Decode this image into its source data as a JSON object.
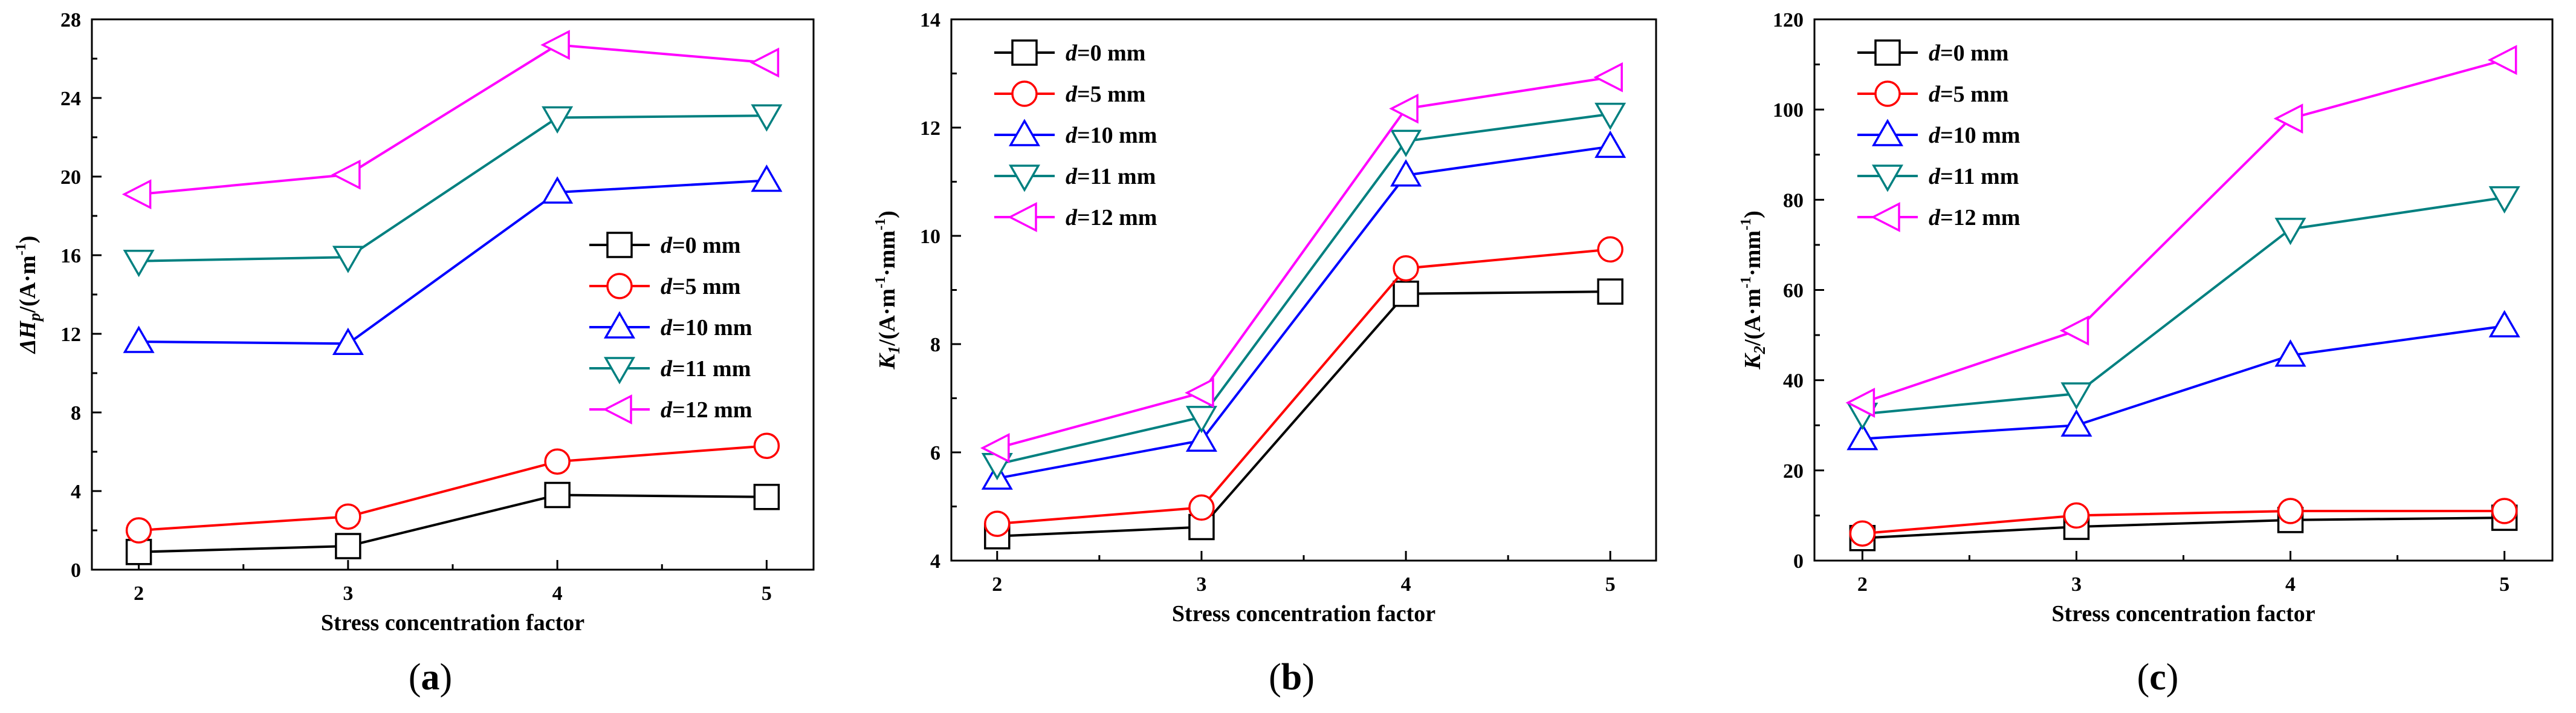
{
  "figure": {
    "panels": [
      "(a)",
      "(b)",
      "(c)"
    ]
  },
  "legend_entries": [
    {
      "prefix": "d",
      "suffix": "=0 mm",
      "color": "#000000",
      "marker": "square"
    },
    {
      "prefix": "d",
      "suffix": "=5 mm",
      "color": "#ff0000",
      "marker": "circle"
    },
    {
      "prefix": "d",
      "suffix": "=10 mm",
      "color": "#0000ff",
      "marker": "triangle-up"
    },
    {
      "prefix": "d",
      "suffix": "=11 mm",
      "color": "#008080",
      "marker": "triangle-down"
    },
    {
      "prefix": "d",
      "suffix": "=12 mm",
      "color": "#ff00ff",
      "marker": "triangle-left"
    }
  ],
  "chart_data": [
    {
      "type": "line",
      "panel": "(a)",
      "xlabel": "Stress concentration factor",
      "ylabel_main": "ΔH",
      "ylabel_sub": "p",
      "ylabel_unit": "/(A·m",
      "ylabel_exp": "-1",
      "ylabel_end": ")",
      "categories": [
        2,
        3,
        4,
        5
      ],
      "ylim": [
        0,
        28
      ],
      "yticks": [
        0,
        4,
        8,
        12,
        16,
        20,
        24,
        28
      ],
      "legend_position": "center-right",
      "series": [
        {
          "name": "d=0 mm",
          "values": [
            0.9,
            1.2,
            3.8,
            3.7
          ]
        },
        {
          "name": "d=5 mm",
          "values": [
            2.0,
            2.7,
            5.5,
            6.3
          ]
        },
        {
          "name": "d=10 mm",
          "values": [
            11.6,
            11.5,
            19.2,
            19.8
          ]
        },
        {
          "name": "d=11 mm",
          "values": [
            15.7,
            15.9,
            23.0,
            23.1
          ]
        },
        {
          "name": "d=12 mm",
          "values": [
            19.1,
            20.1,
            26.7,
            25.8
          ]
        }
      ]
    },
    {
      "type": "line",
      "panel": "(b)",
      "xlabel": "Stress concentration factor",
      "ylabel_main": "K",
      "ylabel_sub": "1",
      "ylabel_unit": "/(A·m",
      "ylabel_exp": "-1",
      "ylabel_mid": "·mm",
      "ylabel_exp2": "-1",
      "ylabel_end": ")",
      "categories": [
        2,
        3,
        4,
        5
      ],
      "ylim": [
        4,
        14
      ],
      "yticks": [
        4,
        6,
        8,
        10,
        12,
        14
      ],
      "legend_position": "top-left",
      "series": [
        {
          "name": "d=0 mm",
          "values": [
            4.45,
            4.62,
            8.93,
            8.97
          ]
        },
        {
          "name": "d=5 mm",
          "values": [
            4.68,
            4.98,
            9.4,
            9.75
          ]
        },
        {
          "name": "d=10 mm",
          "values": [
            5.52,
            6.22,
            11.12,
            11.65
          ]
        },
        {
          "name": "d=11 mm",
          "values": [
            5.78,
            6.65,
            11.75,
            12.25
          ]
        },
        {
          "name": "d=12 mm",
          "values": [
            6.08,
            7.1,
            12.35,
            12.93
          ]
        }
      ]
    },
    {
      "type": "line",
      "panel": "(c)",
      "xlabel": "Stress concentration factor",
      "ylabel_main": "K",
      "ylabel_sub": "2",
      "ylabel_unit": "/(A·m",
      "ylabel_exp": "-1",
      "ylabel_mid": "·mm",
      "ylabel_exp2": "-1",
      "ylabel_end": ")",
      "categories": [
        2,
        3,
        4,
        5
      ],
      "ylim": [
        0,
        120
      ],
      "yticks": [
        0,
        20,
        40,
        60,
        80,
        100,
        120
      ],
      "legend_position": "top-left",
      "series": [
        {
          "name": "d=0 mm",
          "values": [
            5,
            7.5,
            9,
            9.5
          ]
        },
        {
          "name": "d=5 mm",
          "values": [
            6,
            10,
            11,
            11
          ]
        },
        {
          "name": "d=10 mm",
          "values": [
            27,
            30,
            45.5,
            52
          ]
        },
        {
          "name": "d=11 mm",
          "values": [
            32.5,
            37,
            73.5,
            80.5
          ]
        },
        {
          "name": "d=12 mm",
          "values": [
            35,
            51,
            98,
            111
          ]
        }
      ]
    }
  ]
}
